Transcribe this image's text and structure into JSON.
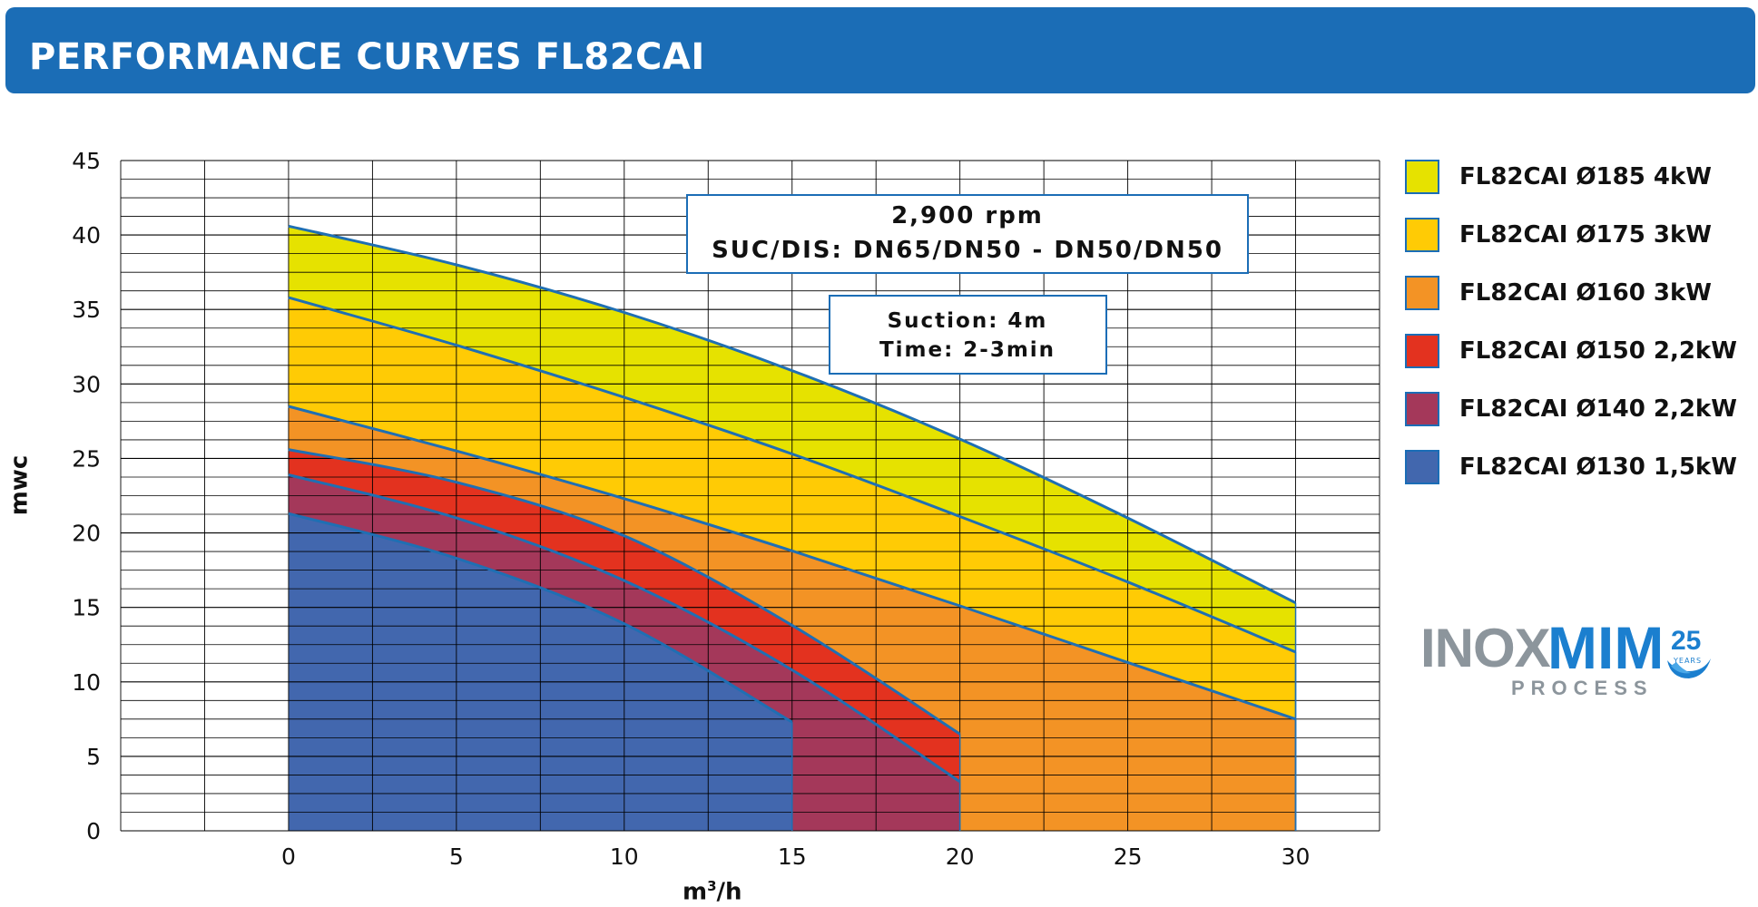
{
  "header": {
    "title": "PERFORMANCE CURVES FL82CAI"
  },
  "chart_data": {
    "type": "area",
    "title": "PERFORMANCE CURVES FL82CAI",
    "xlabel_base": "m",
    "xlabel_sup": "3",
    "xlabel_tail": "/h",
    "ylabel": "mwc",
    "xlim": [
      -5,
      32.5
    ],
    "ylim": [
      0,
      45
    ],
    "xticks": [
      0,
      5,
      10,
      15,
      20,
      25,
      30
    ],
    "yticks": [
      0,
      5,
      10,
      15,
      20,
      25,
      30,
      35,
      40,
      45
    ],
    "info_box": {
      "line1": "2,900 rpm",
      "line2": "SUC/DIS: DN65/DN50 - DN50/DN50"
    },
    "suction_box": {
      "line1": "Suction: 4m",
      "line2": "Time: 2-3min"
    },
    "series": [
      {
        "name": "FL82CAI Ø185 4kW",
        "color": "#e6e200",
        "points": [
          [
            0,
            40.6
          ],
          [
            5,
            38.0
          ],
          [
            10,
            34.8
          ],
          [
            15,
            30.9
          ],
          [
            20,
            26.3
          ],
          [
            25,
            21.0
          ],
          [
            30,
            15.3
          ]
        ]
      },
      {
        "name": "FL82CAI Ø175 3kW",
        "color": "#ffcb05",
        "points": [
          [
            0,
            35.8
          ],
          [
            5,
            32.6
          ],
          [
            10,
            29.1
          ],
          [
            15,
            25.3
          ],
          [
            20,
            21.1
          ],
          [
            25,
            16.7
          ],
          [
            30,
            12.0
          ]
        ]
      },
      {
        "name": "FL82CAI Ø160 3kW",
        "color": "#f39325",
        "points": [
          [
            0,
            28.5
          ],
          [
            5,
            25.5
          ],
          [
            10,
            22.3
          ],
          [
            15,
            18.8
          ],
          [
            20,
            15.1
          ],
          [
            25,
            11.3
          ],
          [
            30,
            7.5
          ]
        ]
      },
      {
        "name": "FL82CAI Ø150 2,2kW",
        "color": "#e3321f",
        "points": [
          [
            0,
            25.6
          ],
          [
            5,
            23.4
          ],
          [
            10,
            19.8
          ],
          [
            15,
            13.8
          ],
          [
            20,
            6.5
          ]
        ]
      },
      {
        "name": "FL82CAI Ø140 2,2kW",
        "color": "#a4385a",
        "points": [
          [
            0,
            23.9
          ],
          [
            5,
            21.0
          ],
          [
            10,
            16.8
          ],
          [
            15,
            10.8
          ],
          [
            20,
            3.3
          ]
        ]
      },
      {
        "name": "FL82CAI Ø130 1,5kW",
        "color": "#4267ae",
        "points": [
          [
            0,
            21.3
          ],
          [
            5,
            18.3
          ],
          [
            10,
            13.9
          ],
          [
            15,
            7.3
          ]
        ]
      }
    ]
  },
  "legend": [
    {
      "label": "FL82CAI Ø185 4kW",
      "color": "#e6e200"
    },
    {
      "label": "FL82CAI Ø175 3kW",
      "color": "#ffcb05"
    },
    {
      "label": "FL82CAI Ø160 3kW",
      "color": "#f39325"
    },
    {
      "label": "FL82CAI Ø150 2,2kW",
      "color": "#e3321f"
    },
    {
      "label": "FL82CAI Ø140 2,2kW",
      "color": "#a4385a"
    },
    {
      "label": "FL82CAI Ø130 1,5kW",
      "color": "#4267ae"
    }
  ],
  "logo": {
    "inox": "INOX",
    "mim": "MIM",
    "process": "PROCESS",
    "badge_number": "25",
    "badge_label": "YEARS"
  },
  "colors": {
    "header_bg": "#1b6db6",
    "curve_line": "#1f6fb3",
    "grid": "#000000"
  }
}
